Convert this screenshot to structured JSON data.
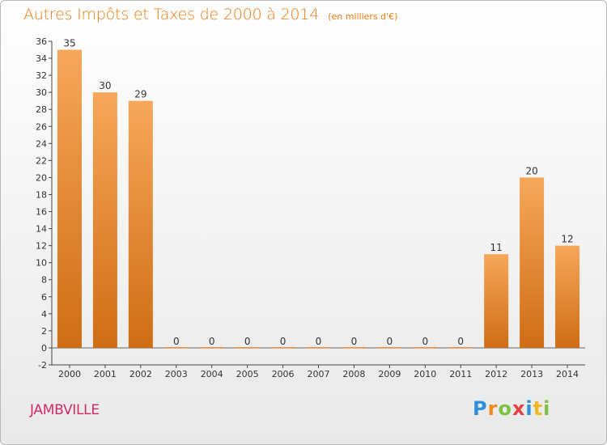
{
  "chart_data": {
    "type": "bar",
    "title": "Autres Impôts et Taxes de 2000 à 2014",
    "subtitle": "(en milliers d'€)",
    "categories": [
      "2000",
      "2001",
      "2002",
      "2003",
      "2004",
      "2005",
      "2006",
      "2007",
      "2008",
      "2009",
      "2010",
      "2011",
      "2012",
      "2013",
      "2014"
    ],
    "values": [
      35,
      30,
      29,
      0,
      0,
      0,
      0,
      0,
      0,
      0,
      0,
      0,
      11,
      20,
      12
    ],
    "ylim": [
      -2,
      36
    ],
    "yticks": [
      -2,
      0,
      2,
      4,
      6,
      8,
      10,
      12,
      14,
      16,
      18,
      20,
      22,
      24,
      26,
      28,
      30,
      32,
      34,
      36
    ],
    "grid": false,
    "bar_color_top": "#f7a75a",
    "bar_color_bottom": "#cf6d15"
  },
  "place_name": "JAMBVILLE",
  "logo": {
    "text": "Proxiti",
    "letters": [
      {
        "ch": "P",
        "color": "#2f8fd8"
      },
      {
        "ch": "r",
        "color": "#f08a1c"
      },
      {
        "ch": "o",
        "color": "#7cc142"
      },
      {
        "ch": "x",
        "color": "#e84040"
      },
      {
        "ch": "i",
        "color": "#2f8fd8"
      },
      {
        "ch": "t",
        "color": "#f0b81c"
      },
      {
        "ch": "i",
        "color": "#7cc142"
      }
    ]
  }
}
